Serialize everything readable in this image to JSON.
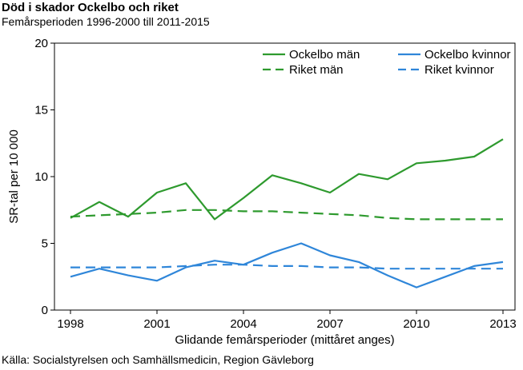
{
  "header": {
    "title": "Död i skador Ockelbo och riket",
    "subtitle": "Femårsperioden 1996-2000 till 2011-2015"
  },
  "footer": {
    "source": "Källa: Socialstyrelsen och Samhällsmedicin, Region Gävleborg"
  },
  "chart_data": {
    "type": "line",
    "xlabel": "Glidande femårsperioder (mittåret anges)",
    "ylabel": "SR-tal per 10 000",
    "xlim": [
      1998,
      2013
    ],
    "ylim": [
      0,
      20
    ],
    "xticks": [
      1998,
      2001,
      2004,
      2007,
      2010,
      2013
    ],
    "yticks": [
      0,
      5,
      10,
      15,
      20
    ],
    "grid": false,
    "legend_position": "top-right",
    "x": [
      1998,
      1999,
      2000,
      2001,
      2002,
      2003,
      2004,
      2005,
      2006,
      2007,
      2008,
      2009,
      2010,
      2011,
      2012,
      2013
    ],
    "series": [
      {
        "name": "Ockelbo män",
        "color": "#2e9a2e",
        "dash": "solid",
        "values": [
          6.9,
          8.1,
          7.0,
          8.8,
          9.5,
          6.8,
          8.4,
          10.1,
          9.5,
          8.8,
          10.2,
          9.8,
          11.0,
          11.2,
          11.5,
          12.8
        ]
      },
      {
        "name": "Ockelbo kvinnor",
        "color": "#2f86d9",
        "dash": "solid",
        "values": [
          2.5,
          3.1,
          2.6,
          2.2,
          3.2,
          3.7,
          3.4,
          4.3,
          5.0,
          4.1,
          3.6,
          2.6,
          1.7,
          2.5,
          3.3,
          3.6
        ]
      },
      {
        "name": "Riket män",
        "color": "#2e9a2e",
        "dash": "dashed",
        "values": [
          7.0,
          7.1,
          7.2,
          7.3,
          7.5,
          7.5,
          7.4,
          7.4,
          7.3,
          7.2,
          7.1,
          6.9,
          6.8,
          6.8,
          6.8,
          6.8
        ]
      },
      {
        "name": "Riket kvinnor",
        "color": "#2f86d9",
        "dash": "dashed",
        "values": [
          3.2,
          3.2,
          3.2,
          3.2,
          3.3,
          3.4,
          3.4,
          3.3,
          3.3,
          3.2,
          3.2,
          3.1,
          3.1,
          3.1,
          3.1,
          3.1
        ]
      }
    ]
  }
}
